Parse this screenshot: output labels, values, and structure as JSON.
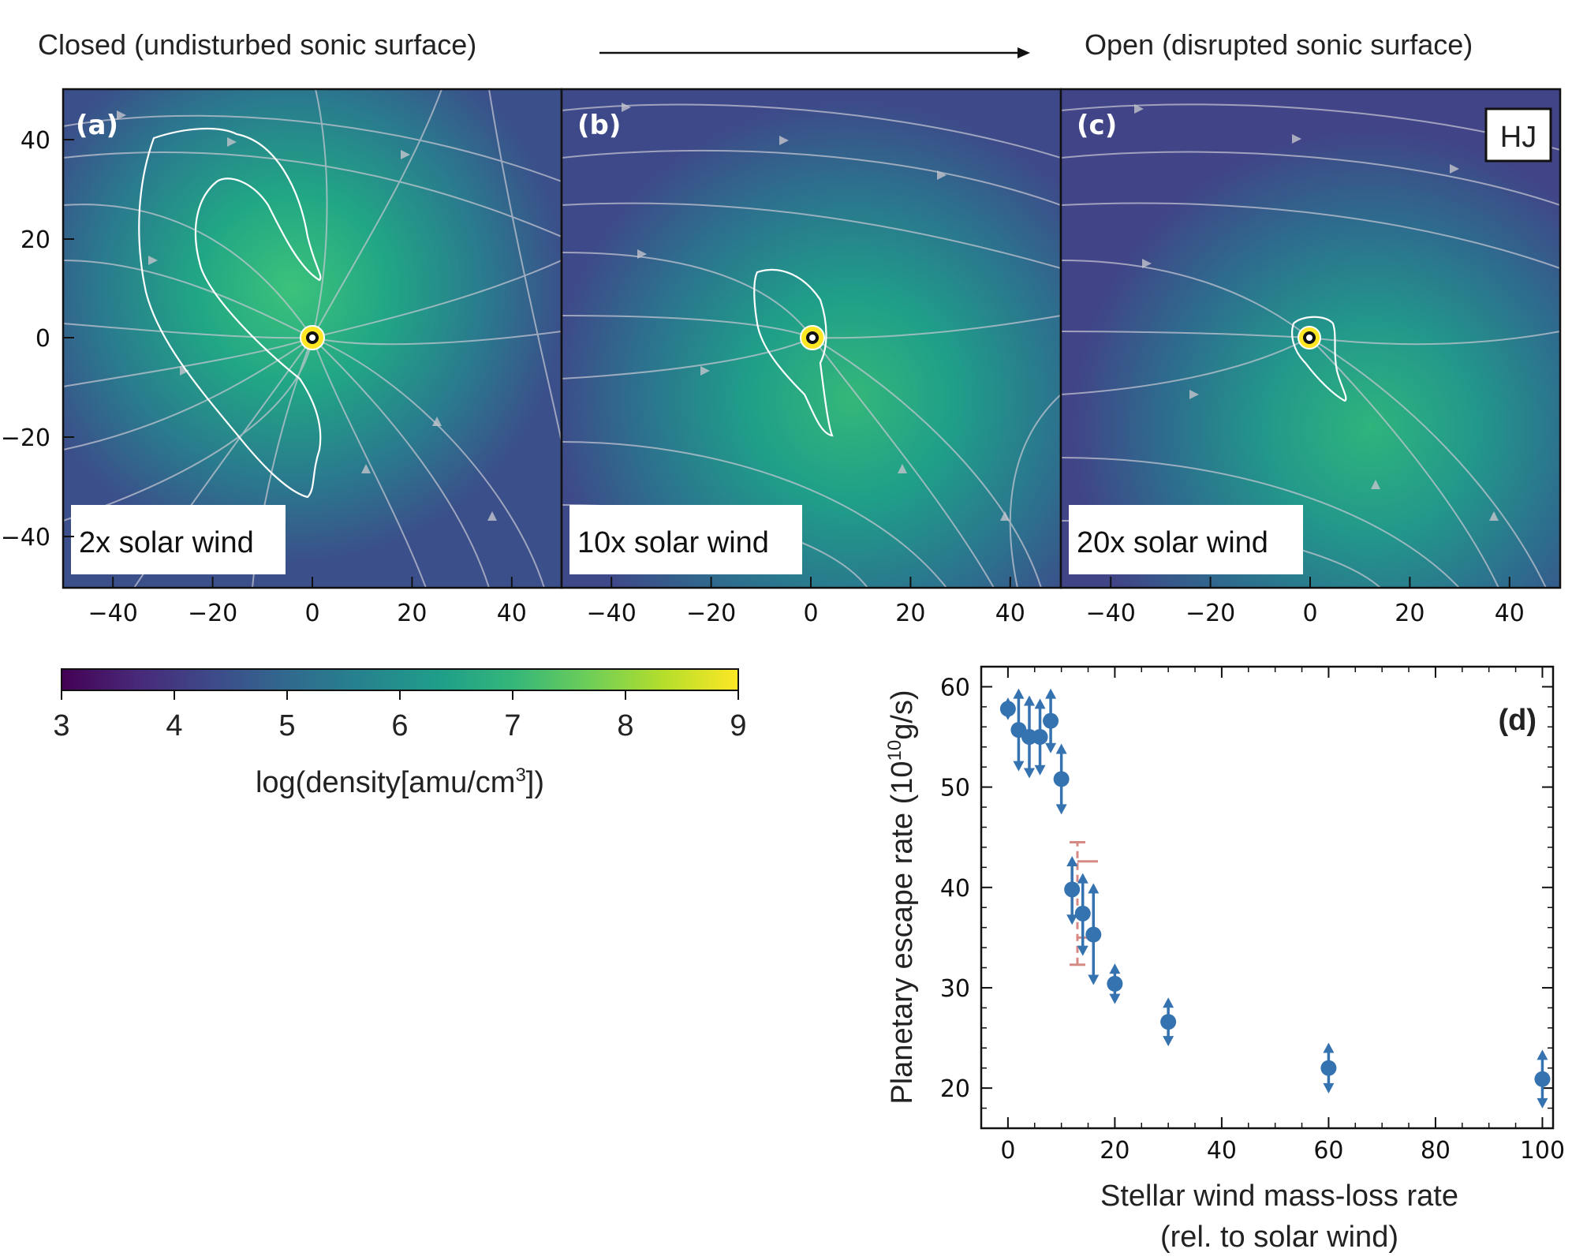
{
  "header": {
    "left_label": "Closed (undisturbed sonic surface)",
    "right_label": "Open (disrupted sonic surface)"
  },
  "panels": [
    {
      "tag": "(a)",
      "caption": "2x solar wind"
    },
    {
      "tag": "(b)",
      "caption": "10x solar wind"
    },
    {
      "tag": "(c)",
      "caption": "20x solar wind",
      "badge": "HJ"
    }
  ],
  "sim_axes": {
    "x_ticks": [
      "−40",
      "−20",
      "0",
      "20",
      "40"
    ],
    "y_ticks": [
      "40",
      "20",
      "0",
      "−20",
      "−40"
    ]
  },
  "colorbar": {
    "ticks": [
      "3",
      "4",
      "5",
      "6",
      "7",
      "8",
      "9"
    ],
    "label_main": "log(density[amu/cm",
    "label_sup": "3",
    "label_end": "])",
    "colors": [
      "#440154",
      "#482878",
      "#3e4989",
      "#31688e",
      "#26828e",
      "#1f9e89",
      "#35b779",
      "#6ece58",
      "#b5de2b",
      "#fde725"
    ]
  },
  "chart_data": {
    "type": "scatter",
    "panel_tag": "(d)",
    "xlabel_line1": "Stellar wind mass-loss rate",
    "xlabel_line2": "(rel. to solar wind)",
    "ylabel_pre": "Planetary escape rate (10",
    "ylabel_sup": "10",
    "ylabel_post": "g/s)",
    "xlim": [
      -5,
      102
    ],
    "ylim": [
      16,
      62
    ],
    "x_ticks": [
      0,
      20,
      40,
      60,
      80,
      100
    ],
    "y_ticks": [
      20,
      30,
      40,
      50,
      60
    ],
    "marker_color": "#3572b0",
    "error_color": "#d68a85",
    "series": [
      {
        "name": "escape rate",
        "points": [
          {
            "x": 0,
            "y": 57.8,
            "up": 58.3,
            "down": 57.3
          },
          {
            "x": 2,
            "y": 55.7,
            "up": 59.2,
            "down": 52.2
          },
          {
            "x": 4,
            "y": 55.0,
            "up": 58.5,
            "down": 51.5
          },
          {
            "x": 6,
            "y": 55.0,
            "up": 58.2,
            "down": 51.8
          },
          {
            "x": 8,
            "y": 56.6,
            "up": 59.2,
            "down": 54.0
          },
          {
            "x": 10,
            "y": 50.8,
            "up": 53.7,
            "down": 47.9
          },
          {
            "x": 12,
            "y": 39.8,
            "up": 42.5,
            "down": 36.9
          },
          {
            "x": 14,
            "y": 37.4,
            "up": 40.8,
            "down": 33.8
          },
          {
            "x": 16,
            "y": 35.3,
            "up": 39.8,
            "down": 30.9
          },
          {
            "x": 20,
            "y": 30.4,
            "up": 31.8,
            "down": 29.0
          },
          {
            "x": 30,
            "y": 26.6,
            "up": 28.4,
            "down": 24.8
          },
          {
            "x": 60,
            "y": 22.0,
            "up": 23.9,
            "down": 20.1
          },
          {
            "x": 100,
            "y": 20.9,
            "up": 23.2,
            "down": 18.6
          }
        ]
      }
    ],
    "reference_errorbar": {
      "x": 13,
      "y_low": 32.3,
      "y_high": 44.5,
      "cap_mid_low": 35.0,
      "cap_mid_high": 42.6
    }
  }
}
